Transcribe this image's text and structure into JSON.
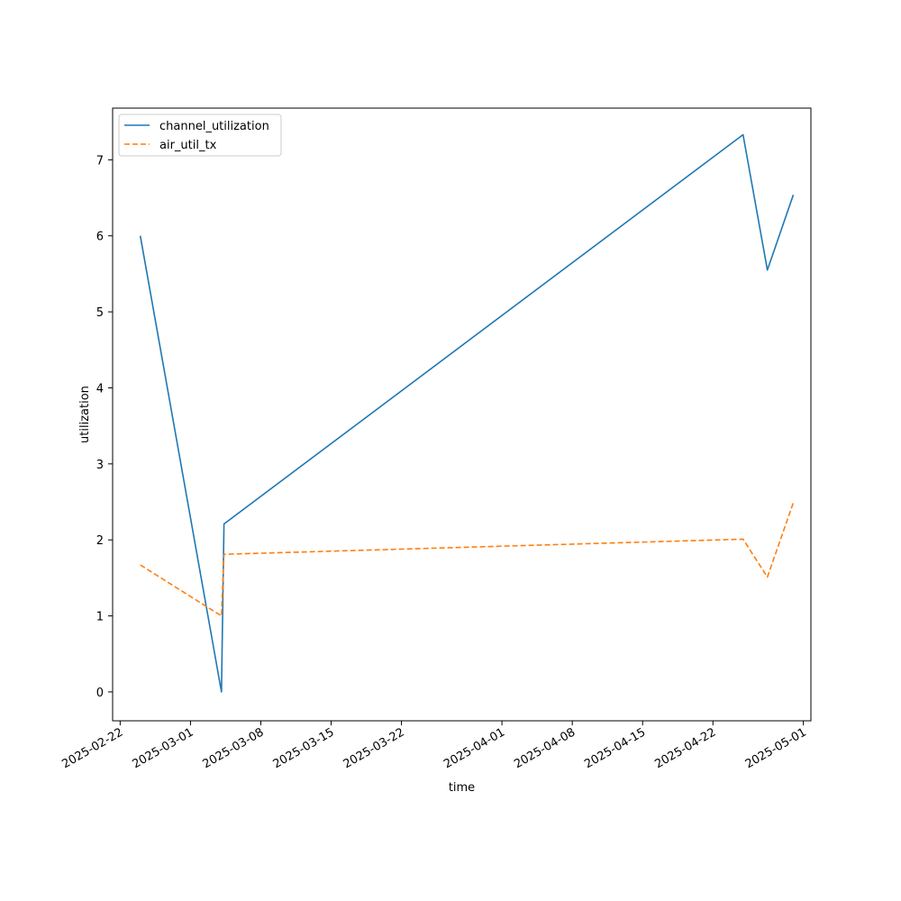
{
  "chart_data": {
    "type": "line",
    "title": "",
    "xlabel": "time",
    "ylabel": "utilization",
    "x_axis_type": "date",
    "xlim": [
      "2025-02-21T06:00",
      "2025-05-01T18:00"
    ],
    "ylim": [
      -0.38,
      7.68
    ],
    "x_ticks": [
      "2025-02-22",
      "2025-03-01",
      "2025-03-08",
      "2025-03-15",
      "2025-03-22",
      "2025-04-01",
      "2025-04-08",
      "2025-04-15",
      "2025-04-22",
      "2025-05-01"
    ],
    "y_ticks": [
      0,
      1,
      2,
      3,
      4,
      5,
      6,
      7
    ],
    "grid": false,
    "legend_position": "top-left",
    "x": [
      "2025-02-24T00:00",
      "2025-03-04T02:00",
      "2025-03-04T08:00",
      "2025-04-25T00:00",
      "2025-04-27T10:00",
      "2025-04-30T00:00"
    ],
    "series": [
      {
        "name": "channel_utilization",
        "color": "#1f77b4",
        "dash": "solid",
        "values": [
          6.0,
          0.0,
          2.21,
          7.33,
          5.55,
          6.54
        ]
      },
      {
        "name": "air_util_tx",
        "color": "#ff7f0e",
        "dash": "dashed",
        "values": [
          1.67,
          1.0,
          1.81,
          2.01,
          1.51,
          2.49
        ]
      }
    ]
  }
}
